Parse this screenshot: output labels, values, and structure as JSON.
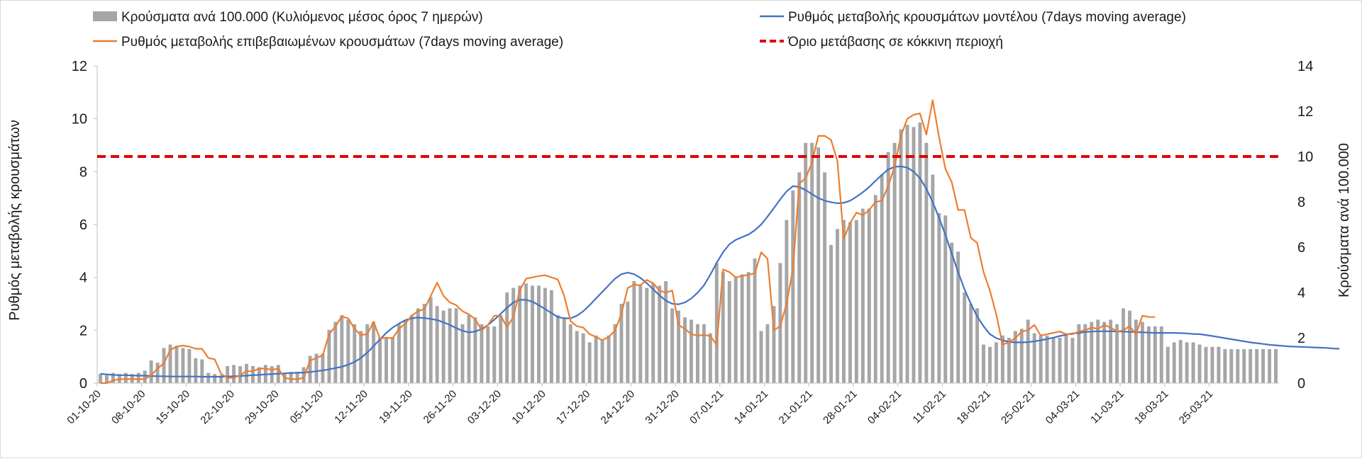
{
  "chart_data": {
    "type": "bar+line",
    "legend": {
      "placement": "top",
      "bars_label": "Κρούσματα ανά 100.000 (Κυλιόμενος μέσος όρος 7 ημερών)",
      "model_label": "Ρυθμός μεταβολής κρουσμάτων μοντέλου (7days moving average)",
      "confirmed_label": "Ρυθμός μεταβολής επιβεβαιωμένων κρουσμάτων (7days moving average)",
      "threshold_label": "Όριο μετάβασης σε κόκκινη περιοχή"
    },
    "y_left": {
      "title": "Ρυθμός μεταβολής κρουσμάτων",
      "min": 0,
      "max": 12,
      "ticks": [
        "0",
        "2",
        "4",
        "6",
        "8",
        "10",
        "12"
      ]
    },
    "y_right": {
      "title": "Κρούσματα ανά 100.000",
      "min": 0,
      "max": 14,
      "ticks": [
        "0",
        "2",
        "4",
        "6",
        "8",
        "10",
        "12",
        "14"
      ]
    },
    "x_tick_labels": [
      "01-10-20",
      "08-10-20",
      "15-10-20",
      "22-10-20",
      "29-10-20",
      "05-11-20",
      "12-11-20",
      "19-11-20",
      "26-11-20",
      "03-12-20",
      "10-12-20",
      "17-12-20",
      "24-12-20",
      "31-12-20",
      "07-01-21",
      "14-01-21",
      "21-01-21",
      "28-01-21",
      "04-02-21",
      "11-02-21",
      "18-02-21",
      "25-02-21",
      "04-03-21",
      "11-03-21",
      "18-03-21",
      "25-03-21"
    ],
    "grid": false,
    "threshold": {
      "value": 10,
      "axis": "right",
      "color": "#e00000"
    },
    "colors": {
      "bars": "#a6a6a6",
      "model": "#4472c4",
      "confirmed": "#ed7d31",
      "threshold": "#e00000",
      "axis": "#7f7f7f"
    },
    "bars_per_100k": [
      0.4,
      0.35,
      0.45,
      0.4,
      0.45,
      0.4,
      0.45,
      0.55,
      1.0,
      0.9,
      1.55,
      1.7,
      1.65,
      1.55,
      1.5,
      1.1,
      1.05,
      0.45,
      0.4,
      0.35,
      0.75,
      0.8,
      0.75,
      0.85,
      0.75,
      0.7,
      0.8,
      0.75,
      0.8,
      0.45,
      0.5,
      0.5,
      0.7,
      1.2,
      1.3,
      1.3,
      2.35,
      2.7,
      3.0,
      2.8,
      2.6,
      2.3,
      2.6,
      2.7,
      2.0,
      2.0,
      2.0,
      2.6,
      2.75,
      3.0,
      3.3,
      3.5,
      3.8,
      3.4,
      3.2,
      3.3,
      3.3,
      2.6,
      3.0,
      2.9,
      2.6,
      2.5,
      2.5,
      3.0,
      4.0,
      4.2,
      4.3,
      4.4,
      4.3,
      4.3,
      4.2,
      4.1,
      3.0,
      2.9,
      2.6,
      2.3,
      2.2,
      1.8,
      2.1,
      1.9,
      2.1,
      2.6,
      3.5,
      3.6,
      4.5,
      4.3,
      4.2,
      4.4,
      4.3,
      4.5,
      3.3,
      3.2,
      2.9,
      2.8,
      2.6,
      2.6,
      2.2,
      5.3,
      4.9,
      4.5,
      4.7,
      4.8,
      4.9,
      5.5,
      2.3,
      2.6,
      3.4,
      5.3,
      7.2,
      8.5,
      9.3,
      10.6,
      10.6,
      10.4,
      9.3,
      6.1,
      6.8,
      7.2,
      7.1,
      7.2,
      7.7,
      7.7,
      8.3,
      9.2,
      10.2,
      10.6,
      11.2,
      11.4,
      11.3,
      11.5,
      10.6,
      9.2,
      7.5,
      7.4,
      6.2,
      5.8,
      4.0,
      3.5,
      3.3,
      1.7,
      1.6,
      1.8,
      2.1,
      2.0,
      2.3,
      2.4,
      2.8,
      2.2,
      2.1,
      2.1,
      2.0,
      2.0,
      2.2,
      2.0,
      2.6,
      2.6,
      2.7,
      2.8,
      2.7,
      2.8,
      2.6,
      3.3,
      3.2,
      2.8,
      2.7,
      2.5,
      2.5,
      2.5,
      1.6,
      1.8,
      1.9,
      1.8,
      1.8,
      1.7,
      1.6,
      1.6,
      1.6,
      1.5,
      1.5,
      1.5,
      1.5,
      1.5,
      1.5,
      1.5,
      1.5,
      1.5
    ],
    "model_rate": [
      0.35,
      0.33,
      0.31,
      0.3,
      0.3,
      0.29,
      0.28,
      0.28,
      0.27,
      0.26,
      0.26,
      0.25,
      0.25,
      0.25,
      0.25,
      0.25,
      0.24,
      0.24,
      0.24,
      0.24,
      0.25,
      0.26,
      0.27,
      0.28,
      0.3,
      0.31,
      0.33,
      0.34,
      0.36,
      0.37,
      0.38,
      0.39,
      0.4,
      0.42,
      0.45,
      0.48,
      0.52,
      0.57,
      0.62,
      0.7,
      0.8,
      0.95,
      1.15,
      1.4,
      1.65,
      1.9,
      2.1,
      2.25,
      2.38,
      2.45,
      2.48,
      2.46,
      2.43,
      2.38,
      2.3,
      2.2,
      2.08,
      1.98,
      1.92,
      1.95,
      2.05,
      2.2,
      2.4,
      2.62,
      2.85,
      3.05,
      3.15,
      3.15,
      3.08,
      2.95,
      2.8,
      2.65,
      2.5,
      2.45,
      2.45,
      2.55,
      2.72,
      2.95,
      3.2,
      3.45,
      3.7,
      3.95,
      4.12,
      4.18,
      4.12,
      3.98,
      3.78,
      3.55,
      3.32,
      3.12,
      3.0,
      2.98,
      3.05,
      3.2,
      3.42,
      3.7,
      4.1,
      4.55,
      4.95,
      5.25,
      5.42,
      5.52,
      5.62,
      5.78,
      6.0,
      6.3,
      6.62,
      6.95,
      7.25,
      7.45,
      7.42,
      7.3,
      7.15,
      7.0,
      6.9,
      6.84,
      6.8,
      6.82,
      6.9,
      7.05,
      7.22,
      7.42,
      7.65,
      7.88,
      8.08,
      8.18,
      8.2,
      8.15,
      8.0,
      7.75,
      7.35,
      6.85,
      6.25,
      5.6,
      4.9,
      4.2,
      3.55,
      3.0,
      2.52,
      2.15,
      1.85,
      1.7,
      1.62,
      1.56,
      1.54,
      1.54,
      1.55,
      1.58,
      1.62,
      1.67,
      1.72,
      1.78,
      1.83,
      1.88,
      1.9,
      1.93,
      1.95,
      1.96,
      1.96,
      1.96,
      1.95,
      1.95,
      1.94,
      1.93,
      1.92,
      1.91,
      1.9,
      1.9,
      1.9,
      1.9,
      1.89,
      1.88,
      1.86,
      1.85,
      1.82,
      1.78,
      1.74,
      1.7,
      1.66,
      1.62,
      1.58,
      1.54,
      1.51,
      1.48,
      1.45,
      1.43,
      1.41,
      1.39,
      1.38,
      1.37,
      1.36,
      1.35,
      1.34,
      1.33,
      1.31,
      1.3
    ],
    "confirmed_rate": [
      0.0,
      0.0,
      0.1,
      0.15,
      0.15,
      0.15,
      0.15,
      0.15,
      0.3,
      0.55,
      0.75,
      1.25,
      1.38,
      1.42,
      1.38,
      1.3,
      1.3,
      0.95,
      0.9,
      0.35,
      0.2,
      0.2,
      0.3,
      0.45,
      0.45,
      0.55,
      0.55,
      0.5,
      0.55,
      0.2,
      0.15,
      0.15,
      0.2,
      0.85,
      0.95,
      1.05,
      1.85,
      2.15,
      2.52,
      2.45,
      2.05,
      1.82,
      1.85,
      2.32,
      1.68,
      1.72,
      1.7,
      2.05,
      2.25,
      2.55,
      2.72,
      2.8,
      3.3,
      3.8,
      3.3,
      3.05,
      2.95,
      2.72,
      2.6,
      2.42,
      2.0,
      2.2,
      2.55,
      2.55,
      2.12,
      2.5,
      3.5,
      3.95,
      4.0,
      4.05,
      4.08,
      4.0,
      3.92,
      3.3,
      2.35,
      2.15,
      2.1,
      1.85,
      1.75,
      1.62,
      1.75,
      1.98,
      2.62,
      3.6,
      3.72,
      3.7,
      3.9,
      3.78,
      3.5,
      3.42,
      3.5,
      2.2,
      2.05,
      1.85,
      1.8,
      1.82,
      1.78,
      1.45,
      4.3,
      4.2,
      4.0,
      4.05,
      4.1,
      4.15,
      4.95,
      4.7,
      2.0,
      2.15,
      3.0,
      4.3,
      7.55,
      7.75,
      8.35,
      9.35,
      9.35,
      9.2,
      8.4,
      5.45,
      6.05,
      6.45,
      6.35,
      6.55,
      6.85,
      6.9,
      7.45,
      8.2,
      9.35,
      10.0,
      10.15,
      10.2,
      9.4,
      10.7,
      9.3,
      8.1,
      7.6,
      6.55,
      6.55,
      5.5,
      5.3,
      4.2,
      3.5,
      2.6,
      1.45,
      1.55,
      1.7,
      1.95,
      2.0,
      2.2,
      1.8,
      1.85,
      1.9,
      1.95,
      1.85,
      1.85,
      1.95,
      2.0,
      2.1,
      2.05,
      2.2,
      2.1,
      1.95,
      2.0,
      2.15,
      1.85,
      2.55,
      2.5,
      2.5,
      null,
      null,
      null,
      null,
      null,
      null,
      null,
      null,
      null,
      null,
      null,
      null,
      null,
      null,
      null,
      null,
      null,
      null,
      null,
      null,
      null,
      null,
      null
    ]
  }
}
